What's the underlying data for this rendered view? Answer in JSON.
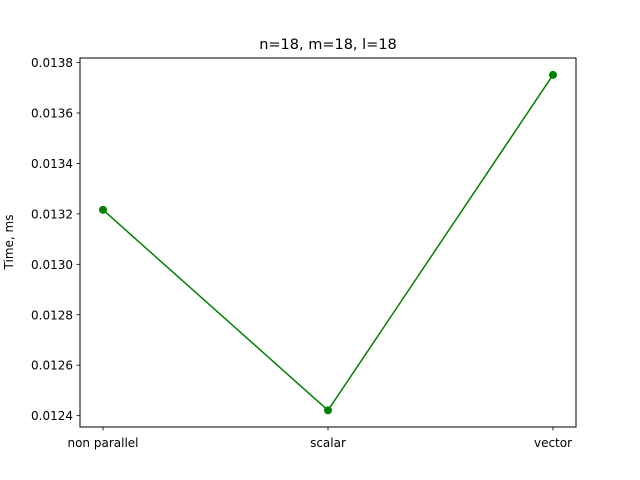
{
  "chart_data": {
    "type": "line",
    "title": "n=18, m=18, l=18",
    "xlabel": "",
    "ylabel": "Time, ms",
    "categories": [
      "non parallel",
      "scalar",
      "vector"
    ],
    "series": [
      {
        "values": [
          0.013216,
          0.012421,
          0.013751
        ],
        "color": "#008000",
        "marker": "circle"
      }
    ],
    "ylim": [
      0.012355,
      0.013818
    ],
    "yticks": [
      0.0124,
      0.0126,
      0.0128,
      0.013,
      0.0132,
      0.0134,
      0.0136,
      0.0138
    ],
    "ytick_labels": [
      "0.0124",
      "0.0126",
      "0.0128",
      "0.0130",
      "0.0132",
      "0.0134",
      "0.0136",
      "0.0138"
    ],
    "grid": false,
    "legend": "none"
  }
}
